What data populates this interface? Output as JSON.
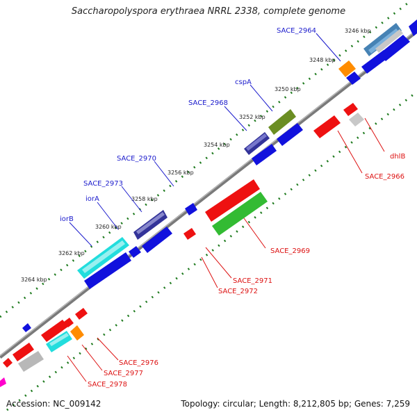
{
  "title": "Saccharopolyspora erythraea NRRL 2338, complete genome",
  "accession": "Accession: NC_009142",
  "summary": "Topology: circular; Length: 8,212,805 bp; Genes: 7,259",
  "colors": {
    "label_blue": "#1a1acc",
    "label_red": "#dd1111",
    "backbone": "#808080",
    "tick_green": "#1e7a1e",
    "blue": "#1111dd",
    "red": "#ee1111",
    "green": "#33bb33",
    "cyan": "#22dddd",
    "olive": "#6b8e23",
    "gray": "#b8b8b8",
    "orange": "#ff8c00",
    "steelblue": "#4682b4",
    "navy": "#333399",
    "slate": "#5555aa",
    "magenta": "#ff00cc"
  },
  "ticks": [
    "3246 kbp",
    "3248 kbp",
    "3250 kbp",
    "3252 kbp",
    "3254 kbp",
    "3256 kbp",
    "3258 kbp",
    "3260 kbp",
    "3262 kbp",
    "3264 kbp"
  ],
  "top_labels": [
    "SACE_2964",
    "cspA",
    "SACE_2968",
    "SACE_2970",
    "SACE_2973",
    "iorA",
    "iorB"
  ],
  "bottom_labels": [
    "dhlB",
    "SACE_2966",
    "SACE_2969",
    "SACE_2971",
    "SACE_2972",
    "SACE_2976",
    "SACE_2977",
    "SACE_2978"
  ]
}
